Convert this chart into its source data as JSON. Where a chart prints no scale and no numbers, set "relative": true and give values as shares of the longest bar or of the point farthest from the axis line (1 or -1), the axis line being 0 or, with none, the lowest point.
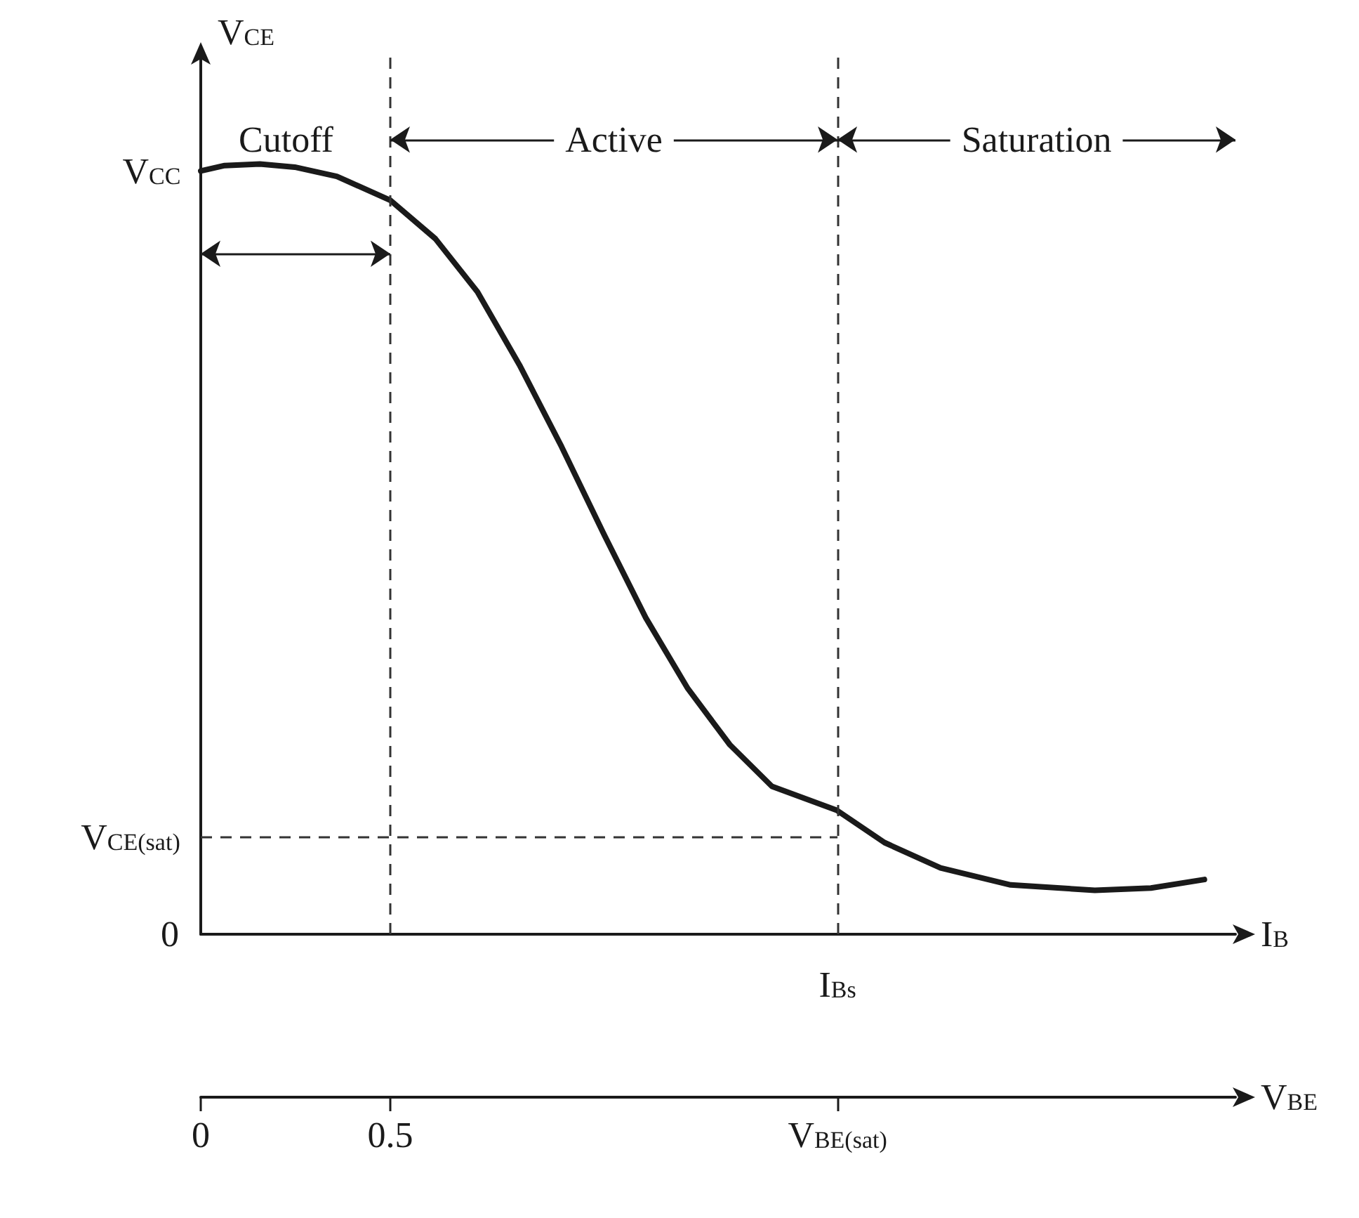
{
  "chart_data": {
    "type": "line",
    "relative": true,
    "ylabel": "V$_{CE}$",
    "xlabel": "V$_{BE}$",
    "x2label": "I$_{B}$",
    "x": [
      0,
      0.063,
      0.156,
      0.248,
      0.359,
      0.5,
      0.619,
      0.73,
      0.841,
      0.952,
      1.063,
      1.174,
      1.285,
      1.396,
      1.507,
      1.678,
      1.804,
      1.952,
      2.137,
      2.359,
      2.507,
      2.648
    ],
    "values": [
      0.991,
      0.998,
      1.0,
      0.996,
      0.984,
      0.953,
      0.903,
      0.834,
      0.739,
      0.633,
      0.52,
      0.411,
      0.319,
      0.246,
      0.192,
      0.161,
      0.119,
      0.086,
      0.064,
      0.057,
      0.06,
      0.071
    ],
    "color": "#1a1a1a",
    "marker": "none",
    "line_style": "solid",
    "xlim": [
      0,
      2.73
    ],
    "xticks": [
      0,
      0.5,
      {
        "value": 1.68,
        "label": "V$_{BE(sat)}$"
      }
    ],
    "ref_lines": [
      {
        "axis": "x",
        "value": 0.5,
        "line_style": "dashed"
      },
      {
        "axis": "x",
        "value": 1.68,
        "line_style": "dashed"
      },
      {
        "axis": "y",
        "value": 0.126,
        "label": "V$_{CE(sat)}$",
        "line_style": "dashed"
      }
    ],
    "annotations": [
      "Cutoff",
      "Active",
      "Saturation",
      "0",
      "I$_{Bs}$",
      {
        "text": "V$_{CC}$",
        "x": 0,
        "y": 0.99
      }
    ],
    "grid": false
  }
}
